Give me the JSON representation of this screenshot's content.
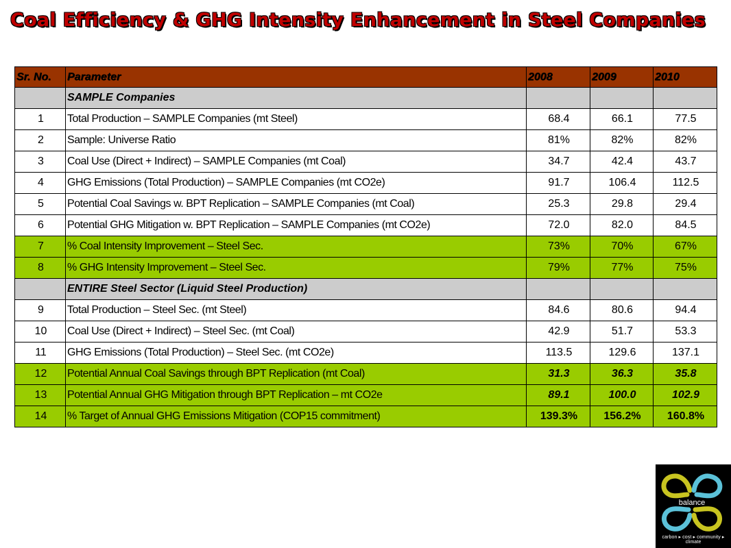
{
  "title": "Coal Efficiency & GHG Intensity Enhancement in Steel Companies",
  "colors": {
    "title": "#c00000",
    "header_bg": "#993300",
    "section_bg": "#cccccc",
    "highlight_bg": "#99cc00",
    "logo_yellow": "#c8c420",
    "logo_cyan": "#5bc1d8"
  },
  "table": {
    "headers": [
      "Sr. No.",
      "Parameter",
      "2008",
      "2009",
      "2010"
    ],
    "sections": [
      {
        "label": "SAMPLE Companies",
        "rows": [
          {
            "sr": "1",
            "param": "Total Production – SAMPLE Companies (mt Steel)",
            "v2008": "68.4",
            "v2009": "66.1",
            "v2010": "77.5"
          },
          {
            "sr": "2",
            "param": "Sample: Universe Ratio",
            "v2008": "81%",
            "v2009": "82%",
            "v2010": "82%"
          },
          {
            "sr": "3",
            "param": "Coal Use (Direct + Indirect) – SAMPLE Companies (mt Coal)",
            "v2008": "34.7",
            "v2009": "42.4",
            "v2010": "43.7"
          },
          {
            "sr": "4",
            "param": "GHG Emissions (Total Production)  – SAMPLE Companies (mt CO2e)",
            "v2008": "91.7",
            "v2009": "106.4",
            "v2010": "112.5"
          },
          {
            "sr": "5",
            "param": "Potential Coal Savings w. BPT Replication – SAMPLE Companies (mt Coal)",
            "v2008": "25.3",
            "v2009": "29.8",
            "v2010": "29.4"
          },
          {
            "sr": "6",
            "param": "Potential GHG Mitigation w. BPT Replication – SAMPLE Companies (mt CO2e)",
            "v2008": "72.0",
            "v2009": "82.0",
            "v2010": "84.5"
          },
          {
            "sr": "7",
            "param": "% Coal Intensity Improvement – Steel Sec.",
            "v2008": "73%",
            "v2009": "70%",
            "v2010": "67%"
          },
          {
            "sr": "8",
            "param": "% GHG Intensity Improvement – Steel Sec.",
            "v2008": "79%",
            "v2009": "77%",
            "v2010": "75%"
          }
        ]
      },
      {
        "label": "ENTIRE Steel Sector (Liquid Steel Production)",
        "rows": [
          {
            "sr": "9",
            "param": "Total Production – Steel Sec. (mt Steel)",
            "v2008": "84.6",
            "v2009": "80.6",
            "v2010": "94.4"
          },
          {
            "sr": "10",
            "param": "Coal Use (Direct + Indirect) – Steel Sec. (mt Coal)",
            "v2008": "42.9",
            "v2009": "51.7",
            "v2010": "53.3"
          },
          {
            "sr": "11",
            "param": "GHG Emissions (Total Production)  – Steel Sec. (mt CO2e)",
            "v2008": "113.5",
            "v2009": "129.6",
            "v2010": "137.1"
          },
          {
            "sr": "12",
            "param": "Potential Annual Coal Savings through BPT Replication (mt Coal)",
            "v2008": "31.3",
            "v2009": "36.3",
            "v2010": "35.8"
          },
          {
            "sr": "13",
            "param": "Potential Annual GHG Mitigation through BPT Replication – mt CO2e",
            "v2008": "89.1",
            "v2009": "100.0",
            "v2010": "102.9"
          },
          {
            "sr": "14",
            "param": "% Target of Annual GHG Emissions Mitigation (COP15 commitment)",
            "v2008": "139.3%",
            "v2009": "156.2%",
            "v2010": "160.8%"
          }
        ]
      }
    ]
  },
  "logo": {
    "icon": "balance-logo-icon",
    "name": "balance",
    "tagline": "carbon ▸ cost ▸ community ▸ climate"
  }
}
